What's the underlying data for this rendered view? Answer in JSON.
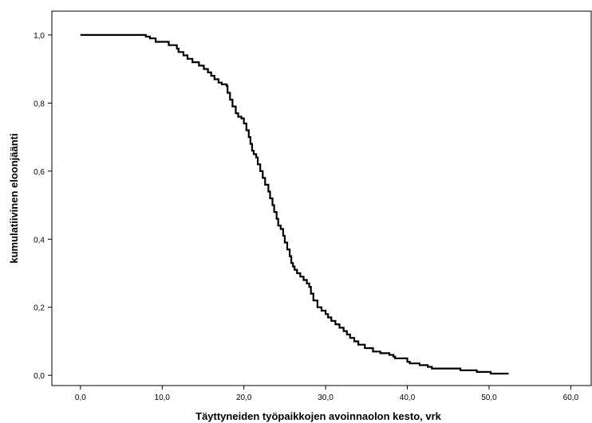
{
  "chart_data": {
    "type": "line",
    "subtype": "step",
    "title": "",
    "xlabel": "Täyttyneiden työpaikkojen avoinnaolon kesto, vrk",
    "ylabel": "kumulatiivinen eloonjäänti",
    "xlim": [
      -3.5,
      62.5
    ],
    "ylim": [
      -0.03,
      1.07
    ],
    "xticks": [
      0,
      10,
      20,
      30,
      40,
      50,
      60
    ],
    "xtick_labels": [
      "0,0",
      "10,0",
      "20,0",
      "30,0",
      "40,0",
      "50,0",
      "60,0"
    ],
    "yticks": [
      0,
      0.2,
      0.4,
      0.6,
      0.8,
      1.0
    ],
    "ytick_labels": [
      "0,0",
      "0,2",
      "0,4",
      "0,6",
      "0,8",
      "1,0"
    ],
    "grid": false,
    "legend": "none",
    "line_color": "#000000",
    "series": [
      {
        "x": [
          0,
          8,
          8.5,
          9.2,
          10.8,
          11.8,
          12,
          12.6,
          13.1,
          13.7,
          14.5,
          15.1,
          15.6,
          16,
          16.4,
          16.9,
          17.3,
          17.9,
          18,
          18.3,
          18.6,
          19,
          19.3,
          19.7,
          20,
          20.3,
          20.6,
          20.8,
          21,
          21.2,
          21.5,
          21.7,
          22,
          22.3,
          22.6,
          23,
          23.2,
          23.5,
          23.7,
          24,
          24.2,
          24.5,
          24.8,
          25,
          25.3,
          25.6,
          25.8,
          26,
          26.2,
          26.5,
          26.9,
          27.3,
          27.7,
          28,
          28.2,
          28.5,
          29,
          29.5,
          30,
          30.3,
          30.7,
          31.2,
          31.7,
          32.2,
          32.6,
          33,
          33.5,
          34,
          34.8,
          35.8,
          36.7,
          37.8,
          38.3,
          38.5,
          40,
          40.3,
          41.5,
          42.5,
          43,
          46.5,
          48.5,
          50.2,
          52.3
        ],
        "y": [
          1.0,
          0.995,
          0.99,
          0.98,
          0.97,
          0.96,
          0.95,
          0.94,
          0.93,
          0.92,
          0.91,
          0.9,
          0.89,
          0.88,
          0.87,
          0.86,
          0.855,
          0.85,
          0.83,
          0.81,
          0.79,
          0.77,
          0.76,
          0.755,
          0.74,
          0.72,
          0.7,
          0.68,
          0.66,
          0.65,
          0.64,
          0.62,
          0.6,
          0.58,
          0.56,
          0.54,
          0.52,
          0.5,
          0.48,
          0.46,
          0.44,
          0.43,
          0.41,
          0.39,
          0.37,
          0.35,
          0.33,
          0.32,
          0.31,
          0.3,
          0.29,
          0.28,
          0.27,
          0.26,
          0.24,
          0.22,
          0.2,
          0.19,
          0.18,
          0.17,
          0.16,
          0.15,
          0.14,
          0.13,
          0.12,
          0.11,
          0.1,
          0.09,
          0.08,
          0.07,
          0.065,
          0.06,
          0.055,
          0.05,
          0.04,
          0.035,
          0.03,
          0.025,
          0.02,
          0.015,
          0.01,
          0.005,
          0.003
        ]
      }
    ]
  }
}
